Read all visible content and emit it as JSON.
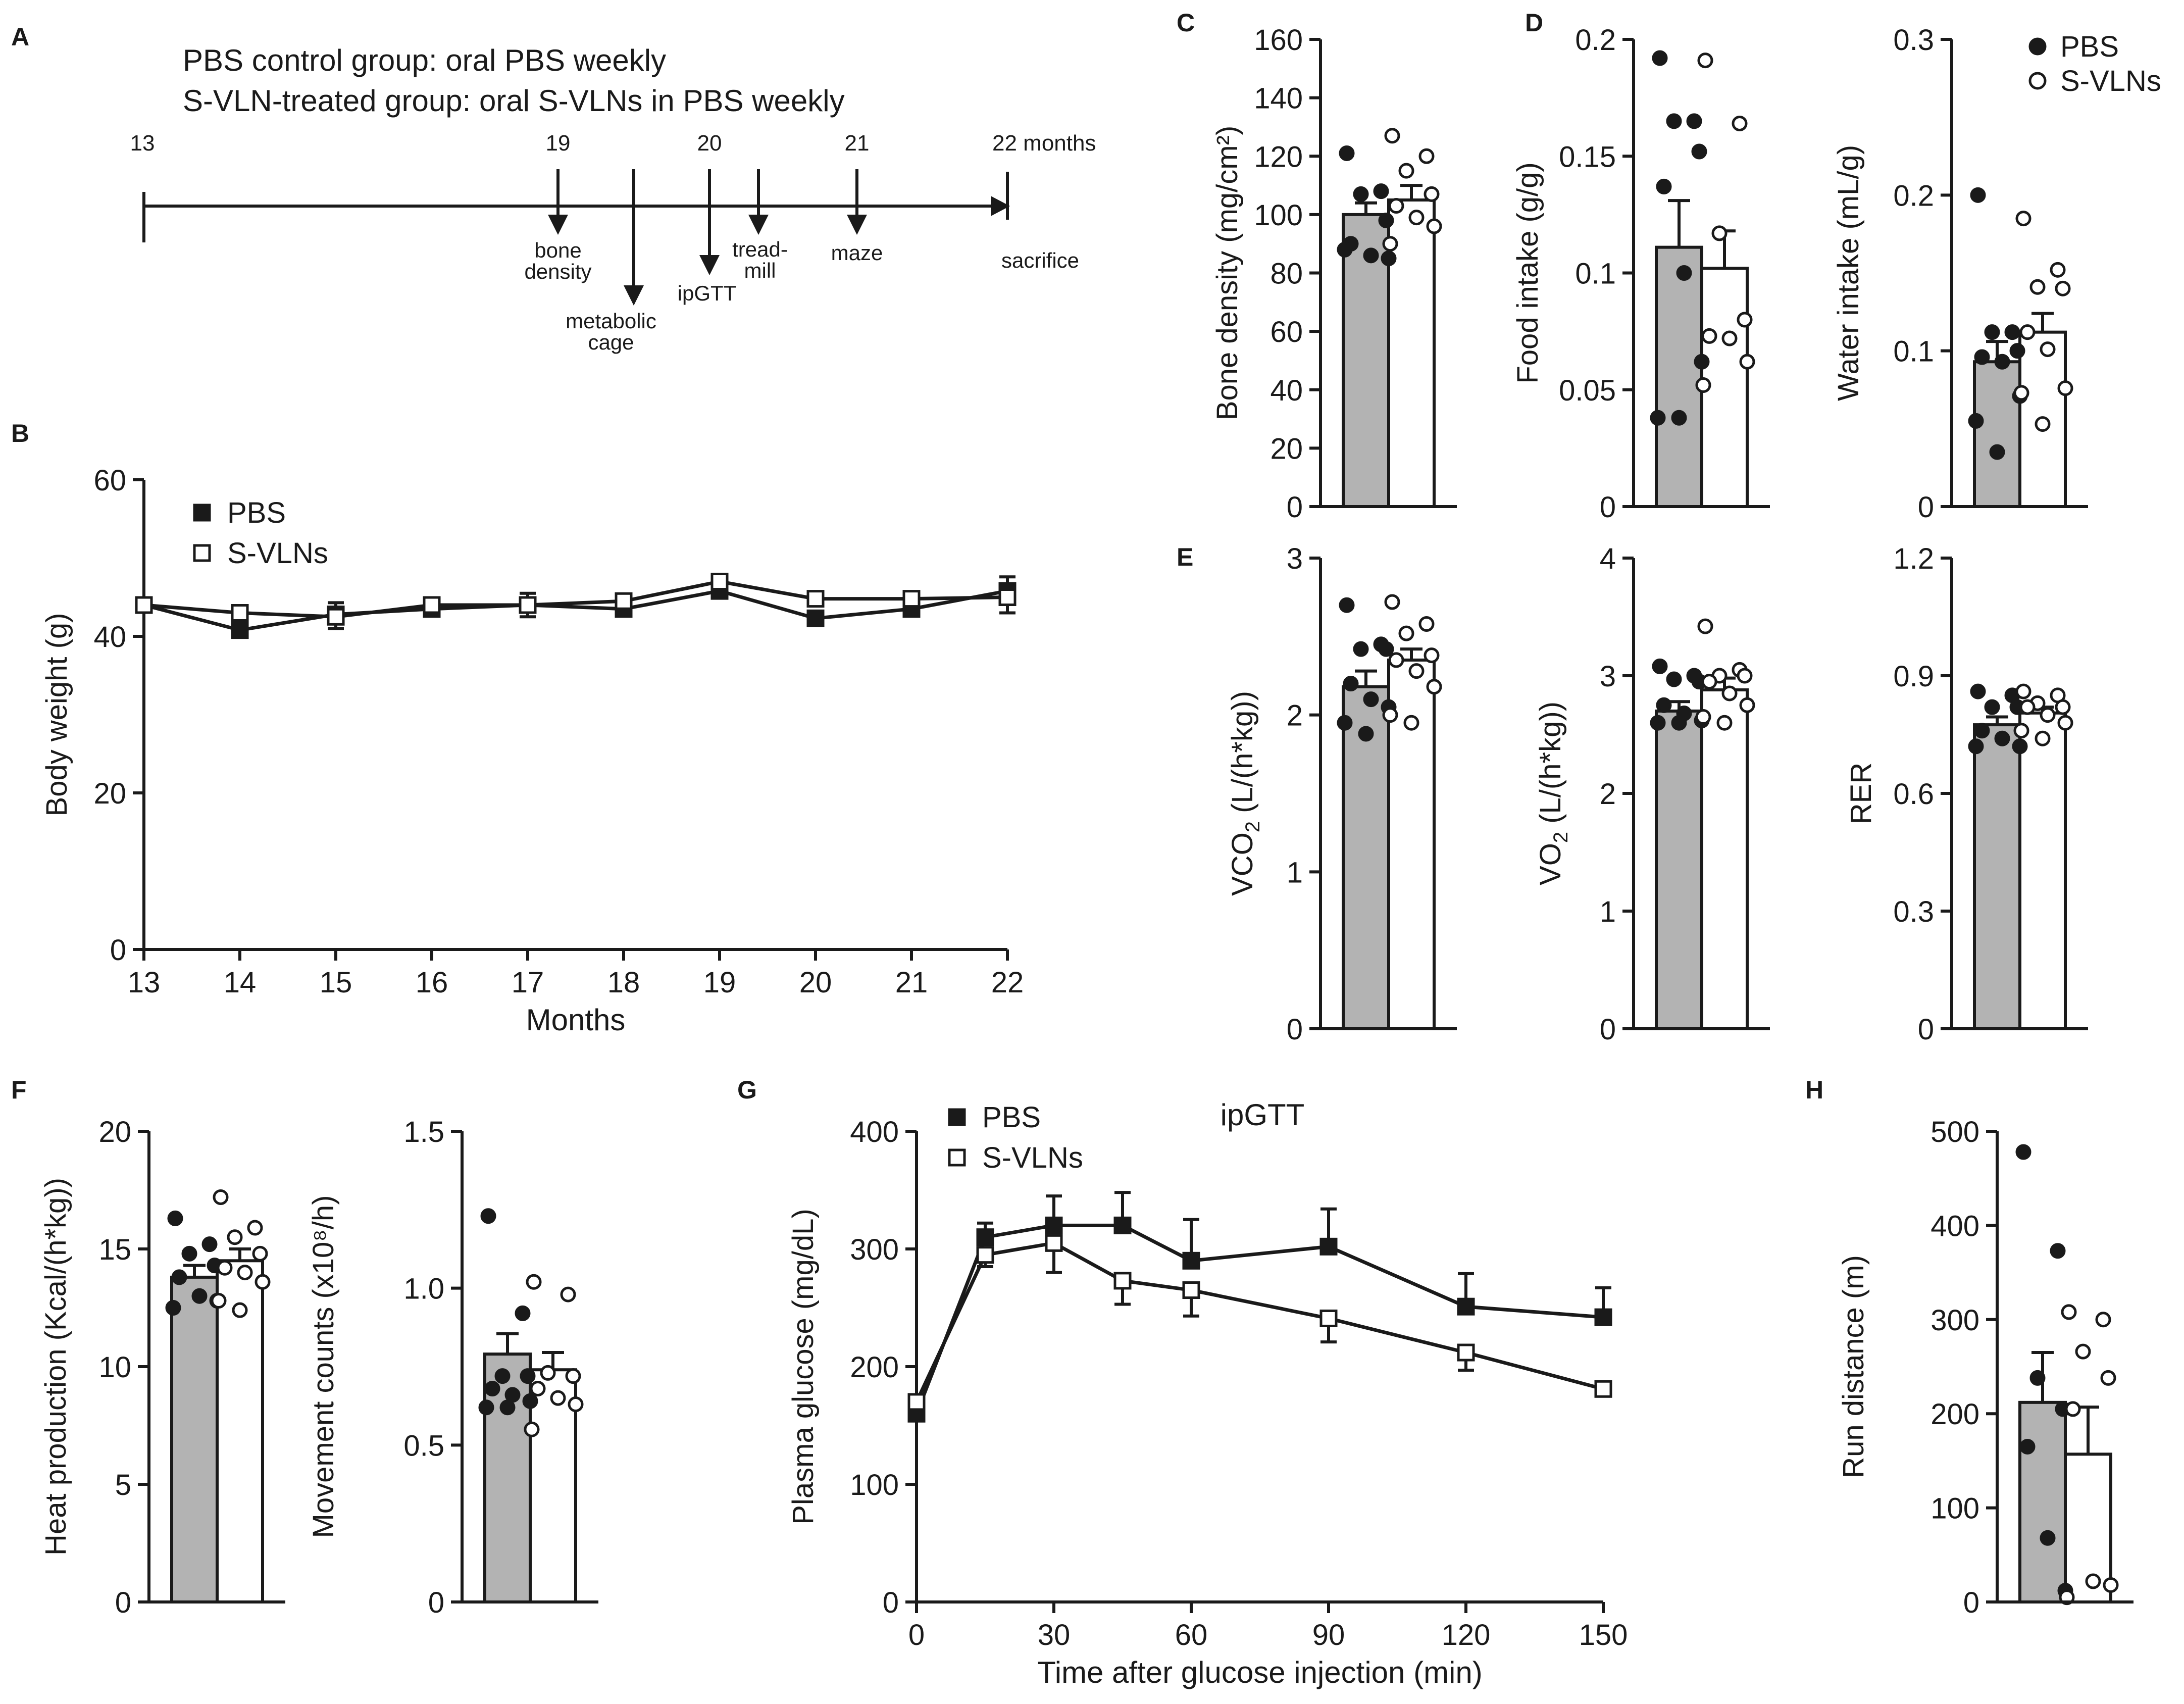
{
  "colors": {
    "pbs_bar": "#b3b3b3",
    "ink": "#1a1a1a",
    "svln_bar": "#ffffff"
  },
  "panel_a": {
    "letter": "A",
    "line1": "PBS control group: oral PBS weekly",
    "line2": "S-VLN-treated group: oral S-VLNs in PBS weekly",
    "timeline_start_label": "13",
    "timeline_end_label": "22 months",
    "events": [
      {
        "month_label": "19",
        "label_lines": [
          "bone",
          "density"
        ]
      },
      {
        "month_label": "",
        "label_lines": [
          "metabolic",
          "cage"
        ]
      },
      {
        "month_label": "20",
        "label_lines": [
          "ipGTT"
        ]
      },
      {
        "month_label": "",
        "label_lines": [
          "tread-",
          "mill"
        ]
      },
      {
        "month_label": "21",
        "label_lines": [
          "maze"
        ]
      },
      {
        "month_label": "",
        "label_lines": [
          "sacrifice"
        ]
      }
    ]
  },
  "chart_data": [
    {
      "id": "B",
      "type": "line",
      "letter": "B",
      "xlabel": "Months",
      "ylabel": "Body weight (g)",
      "x": [
        13,
        14,
        15,
        16,
        17,
        18,
        19,
        20,
        21,
        22
      ],
      "ylim": [
        0,
        60
      ],
      "yticks": [
        0,
        20,
        40,
        60
      ],
      "legend": [
        "PBS",
        "S-VLNs"
      ],
      "series": [
        {
          "name": "PBS",
          "marker": "filled-square",
          "values": [
            44.0,
            40.8,
            42.8,
            43.5,
            44.0,
            43.5,
            45.8,
            42.3,
            43.5,
            45.8
          ],
          "errors": [
            0.8,
            0.8,
            1.5,
            0.8,
            1.5,
            1.0,
            0.8,
            0.8,
            0.8,
            1.8
          ]
        },
        {
          "name": "S-VLNs",
          "marker": "open-square",
          "values": [
            44.0,
            43.0,
            42.5,
            44.0,
            44.0,
            44.5,
            47.0,
            44.8,
            44.8,
            45.0
          ],
          "errors": [
            0.8,
            0.5,
            1.5,
            0.5,
            1.5,
            0.5,
            0.5,
            0.5,
            1.0,
            2.0
          ]
        }
      ]
    },
    {
      "id": "C",
      "type": "bar",
      "letter": "C",
      "ylabel": "Bone density (mg/cm²)",
      "ylim": [
        0,
        160
      ],
      "yticks": [
        0,
        20,
        40,
        60,
        80,
        100,
        120,
        140,
        160
      ],
      "categories": [
        "PBS",
        "S-VLNs"
      ],
      "values": [
        100,
        105
      ],
      "errors": [
        4,
        5
      ],
      "points": {
        "PBS": [
          121,
          108,
          107,
          98,
          90,
          86,
          85,
          88
        ],
        "S-VLNs": [
          127,
          120,
          115,
          107,
          103,
          99,
          96,
          90
        ]
      }
    },
    {
      "id": "D1",
      "type": "bar",
      "letter": "D",
      "ylabel": "Food intake (g/g)",
      "ylim": [
        0,
        0.2
      ],
      "yticks": [
        "0",
        "0.05",
        "0.1",
        "0.15",
        "0.2"
      ],
      "categories": [
        "PBS",
        "S-VLNs"
      ],
      "values": [
        0.111,
        0.102
      ],
      "errors": [
        0.02,
        0.016
      ],
      "points": {
        "PBS": [
          0.192,
          0.165,
          0.165,
          0.152,
          0.137,
          0.1,
          0.062,
          0.038,
          0.038
        ],
        "S-VLNs": [
          0.191,
          0.164,
          0.117,
          0.08,
          0.073,
          0.072,
          0.062,
          0.052
        ]
      }
    },
    {
      "id": "D2",
      "type": "bar",
      "ylabel": "Water intake (mL/g)",
      "ylim": [
        0,
        0.3
      ],
      "yticks": [
        "0",
        "0.1",
        "0.2",
        "0.3"
      ],
      "categories": [
        "PBS",
        "S-VLNs"
      ],
      "values": [
        0.093,
        0.112
      ],
      "errors": [
        0.013,
        0.012
      ],
      "points": {
        "PBS": [
          0.2,
          0.112,
          0.112,
          0.1,
          0.096,
          0.093,
          0.071,
          0.055,
          0.035
        ],
        "S-VLNs": [
          0.185,
          0.152,
          0.141,
          0.14,
          0.112,
          0.101,
          0.076,
          0.073,
          0.053
        ]
      },
      "legend": [
        "PBS",
        "S-VLNs"
      ]
    },
    {
      "id": "E1",
      "type": "bar",
      "letter": "E",
      "ylabel_main": "VCO",
      "ylabel_sub": "2",
      "ylabel_rest": " (L/(h*kg))",
      "ylim": [
        0,
        3
      ],
      "yticks": [
        0,
        1,
        2,
        3
      ],
      "categories": [
        "PBS",
        "S-VLNs"
      ],
      "values": [
        2.18,
        2.35
      ],
      "errors": [
        0.1,
        0.07
      ],
      "points": {
        "PBS": [
          2.7,
          2.45,
          2.42,
          2.42,
          2.2,
          2.1,
          2.05,
          1.95,
          1.88
        ],
        "S-VLNs": [
          2.72,
          2.58,
          2.52,
          2.38,
          2.35,
          2.28,
          2.18,
          2.0,
          1.95
        ]
      }
    },
    {
      "id": "E2",
      "type": "bar",
      "ylabel_main": "VO",
      "ylabel_sub": "2",
      "ylabel_rest": " (L/(h*kg))",
      "ylim": [
        0,
        4
      ],
      "yticks": [
        0,
        1,
        2,
        3,
        4
      ],
      "categories": [
        "PBS",
        "S-VLNs"
      ],
      "values": [
        2.7,
        2.88
      ],
      "errors": [
        0.08,
        0.1
      ],
      "points": {
        "PBS": [
          3.08,
          3.0,
          2.97,
          2.95,
          2.75,
          2.68,
          2.62,
          2.6,
          2.6
        ],
        "S-VLNs": [
          3.42,
          3.05,
          3.0,
          3.0,
          2.95,
          2.85,
          2.75,
          2.65,
          2.6
        ]
      }
    },
    {
      "id": "E3",
      "type": "bar",
      "ylabel": "RER",
      "ylim": [
        0,
        1.2
      ],
      "yticks": [
        "0",
        "0.3",
        "0.6",
        "0.9",
        "1.2"
      ],
      "categories": [
        "PBS",
        "S-VLNs"
      ],
      "values": [
        0.775,
        0.805
      ],
      "errors": [
        0.02,
        0.015
      ],
      "points": {
        "PBS": [
          0.86,
          0.85,
          0.82,
          0.82,
          0.76,
          0.74,
          0.72,
          0.72
        ],
        "S-VLNs": [
          0.86,
          0.85,
          0.83,
          0.82,
          0.82,
          0.8,
          0.78,
          0.76,
          0.74
        ]
      }
    },
    {
      "id": "F1",
      "type": "bar",
      "letter": "F",
      "ylabel": "Heat production (Kcal/(h*kg))",
      "ylim": [
        0,
        20
      ],
      "yticks": [
        0,
        5,
        10,
        15,
        20
      ],
      "categories": [
        "PBS",
        "S-VLNs"
      ],
      "values": [
        13.8,
        14.5
      ],
      "errors": [
        0.5,
        0.5
      ],
      "points": {
        "PBS": [
          16.3,
          15.2,
          14.8,
          14.3,
          13.8,
          13.0,
          12.8,
          12.5
        ],
        "S-VLNs": [
          17.2,
          15.9,
          15.5,
          14.8,
          14.2,
          14.0,
          13.6,
          12.8,
          12.4
        ]
      }
    },
    {
      "id": "F2",
      "type": "bar",
      "ylabel": "Movement counts (x10⁸/h)",
      "ylim": [
        0,
        1.5
      ],
      "yticks": [
        "0",
        "0.5",
        "1.0",
        "1.5"
      ],
      "categories": [
        "PBS",
        "S-VLNs"
      ],
      "values": [
        0.79,
        0.74
      ],
      "errors": [
        0.065,
        0.055
      ],
      "points": {
        "PBS": [
          1.23,
          0.92,
          0.72,
          0.72,
          0.68,
          0.66,
          0.64,
          0.62,
          0.62
        ],
        "S-VLNs": [
          1.02,
          0.98,
          0.73,
          0.72,
          0.68,
          0.65,
          0.63,
          0.55
        ]
      }
    },
    {
      "id": "G",
      "type": "line",
      "letter": "G",
      "title": "ipGTT",
      "xlabel": "Time after glucose injection (min)",
      "ylabel": "Plasma glucose (mg/dL)",
      "x": [
        0,
        15,
        30,
        45,
        60,
        90,
        120,
        150
      ],
      "xticks": [
        0,
        30,
        60,
        90,
        120,
        150
      ],
      "ylim": [
        0,
        400
      ],
      "yticks": [
        0,
        100,
        200,
        300,
        400
      ],
      "legend": [
        "PBS",
        "S-VLNs"
      ],
      "series": [
        {
          "name": "PBS",
          "marker": "filled-square",
          "values": [
            160,
            310,
            320,
            320,
            290,
            302,
            251,
            242
          ],
          "errors": [
            5,
            12,
            25,
            28,
            35,
            32,
            28,
            25
          ]
        },
        {
          "name": "S-VLNs",
          "marker": "open-square",
          "values": [
            170,
            295,
            305,
            273,
            265,
            241,
            212,
            181
          ],
          "errors": [
            5,
            10,
            25,
            20,
            22,
            20,
            15,
            5
          ]
        }
      ]
    },
    {
      "id": "H",
      "type": "bar",
      "letter": "H",
      "ylabel": "Run distance (m)",
      "ylim": [
        0,
        500
      ],
      "yticks": [
        0,
        100,
        200,
        300,
        400,
        500
      ],
      "categories": [
        "PBS",
        "S-VLNs"
      ],
      "values": [
        212,
        157
      ],
      "errors": [
        53,
        50
      ],
      "points": {
        "PBS": [
          478,
          373,
          238,
          205,
          165,
          68,
          12
        ],
        "S-VLNs": [
          308,
          300,
          266,
          238,
          205,
          22,
          18,
          5
        ]
      }
    }
  ]
}
